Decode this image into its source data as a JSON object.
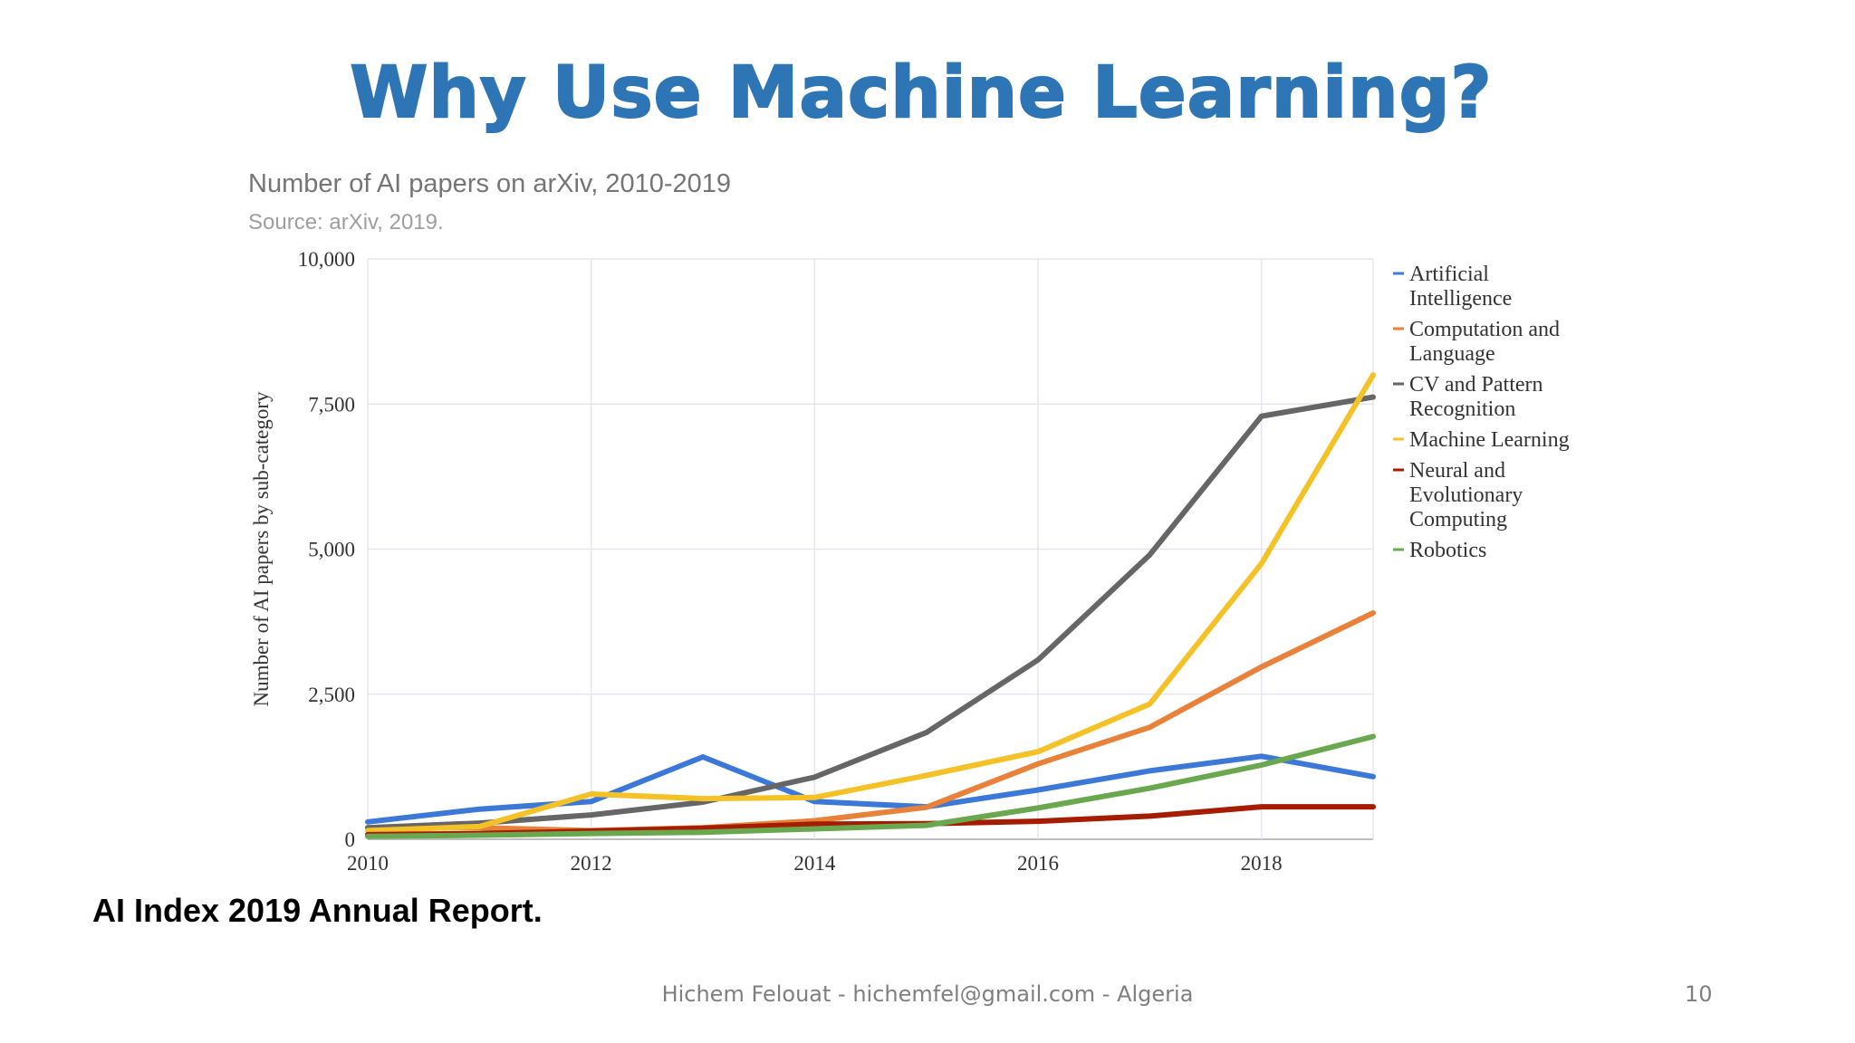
{
  "slide": {
    "title": "Why Use Machine Learning?",
    "caption": "AI Index 2019 Annual Report.",
    "footer": "Hichem Felouat - hichemfel@gmail.com - Algeria",
    "page_number": "10"
  },
  "chart_data": {
    "type": "line",
    "title": "Number of AI papers on arXiv, 2010-2019",
    "subtitle": "Source: arXiv, 2019.",
    "xlabel": "",
    "ylabel": "Number of AI papers by sub-category",
    "x": [
      2010,
      2011,
      2012,
      2013,
      2014,
      2015,
      2016,
      2017,
      2018,
      2019
    ],
    "xlim": [
      2010,
      2019
    ],
    "ylim": [
      0,
      10000
    ],
    "x_ticks": [
      "2010",
      "2012",
      "2014",
      "2016",
      "2018"
    ],
    "x_tick_values": [
      2010,
      2012,
      2014,
      2016,
      2018
    ],
    "y_ticks": [
      "0",
      "2,500",
      "5,000",
      "7,500",
      "10,000"
    ],
    "y_tick_values": [
      0,
      2500,
      5000,
      7500,
      10000
    ],
    "grid": true,
    "legend_position": "right",
    "series": [
      {
        "name": "Artificial Intelligence",
        "legend_lines": [
          "Artificial",
          "Intelligence"
        ],
        "color": "#3c78d8",
        "values": [
          300,
          520,
          650,
          1420,
          650,
          560,
          850,
          1180,
          1430,
          1080
        ]
      },
      {
        "name": "Computation and Language",
        "legend_lines": [
          "Computation and",
          "Language"
        ],
        "color": "#e8823b",
        "values": [
          200,
          200,
          150,
          200,
          320,
          550,
          1300,
          1930,
          2970,
          3900
        ]
      },
      {
        "name": "CV and Pattern Recognition",
        "legend_lines": [
          "CV and Pattern",
          "Recognition"
        ],
        "color": "#666666",
        "values": [
          200,
          280,
          420,
          640,
          1070,
          1840,
          3090,
          4900,
          7290,
          7620
        ]
      },
      {
        "name": "Machine Learning",
        "legend_lines": [
          "Machine Learning"
        ],
        "color": "#f4c226",
        "values": [
          150,
          220,
          780,
          700,
          720,
          1100,
          1510,
          2330,
          4750,
          8000
        ]
      },
      {
        "name": "Neural and Evolutionary Computing",
        "legend_lines": [
          "Neural and",
          "Evolutionary",
          "Computing"
        ],
        "color": "#a61c00",
        "values": [
          80,
          100,
          140,
          190,
          260,
          270,
          310,
          400,
          560,
          560
        ]
      },
      {
        "name": "Robotics",
        "legend_lines": [
          "Robotics"
        ],
        "color": "#6aa84f",
        "values": [
          50,
          70,
          100,
          120,
          180,
          240,
          540,
          880,
          1280,
          1770
        ]
      }
    ]
  }
}
